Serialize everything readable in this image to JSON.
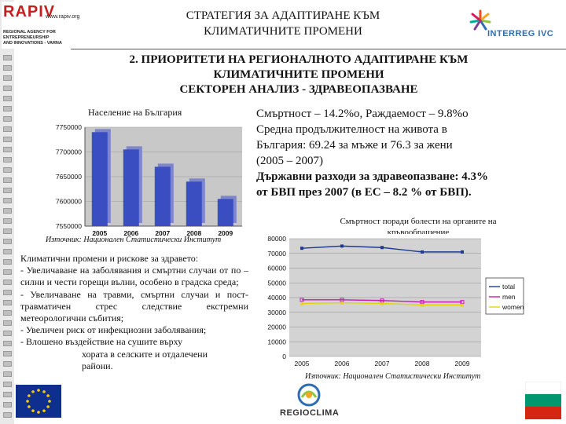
{
  "header": {
    "title_line1": "СТРАТЕГИЯ ЗА АДАПТИРАНЕ КЪМ",
    "title_line2": "КЛИМАТИЧНИТЕ ПРОМЕНИ",
    "rapiv_logo": {
      "name": "RAPIV",
      "web": "www.rapiv.org",
      "sub1": "REGIONAL AGENCY FOR ENTREPRENEURSHIP",
      "sub2": "AND INNOVATIONS - VARNA"
    },
    "interreg_logo": {
      "name": "INTERREG IVC"
    }
  },
  "section": {
    "title_line1": "2. ПРИОРИТЕТИ НА РЕГИОНАЛНОТО АДАПТИРАНЕ КЪМ",
    "title_line2": "КЛИМАТИЧНИТЕ ПРОМЕНИ",
    "title_line3": "СЕКТОРЕН АНАЛИЗ - ЗДРАВЕОПАЗВАНЕ"
  },
  "stats": {
    "line1": "Смъртност – 14.2%о, Раждаемост – 9.8%о",
    "line2": "Средна продължителност на живота в",
    "line3": "България: 69.24 за мъже и  76.3 за жени",
    "line4": "(2005 – 2007)",
    "line5": "Държавни разходи за здравеопазване: 4.3%",
    "line6": "от БВП през 2007 (в ЕС  – 8.2 % от БВП)."
  },
  "population_chart_title": "Население на България",
  "population_source": "Източник: Национален Статистически Институт",
  "mortality_chart_title_line1": "Смъртност поради болести на органите на",
  "mortality_chart_title_line2": "кръвообращение",
  "mortality_source": "Източник: Национален Статистически Институт",
  "climate": {
    "p1": "Климатични промени и рискове за здравето:",
    "p2": "- Увеличаване на заболявания и смъртни случаи от по – силни и чести горещи вълни, особено в градска среда;",
    "p3": "- Увеличаване на травми, смъртни случаи и пост-травматичен стрес следствие екстремни метеорологични събития;",
    "p4": "- Увеличен риск от инфекциозни заболявания;",
    "p5a": "- Влошено въздействие на сушите върху",
    "p5b": "хората в селските и отдалечени",
    "p5c": "райони."
  },
  "footer": {
    "regioclima": "REGIOCLIMA"
  },
  "colors": {
    "bar_fill": "#3a4ec2",
    "total": "#1f3a8f",
    "men": "#c21fb0",
    "women": "#e6d40a"
  },
  "chart_data": [
    {
      "type": "bar",
      "categories": [
        "2005",
        "2006",
        "2007",
        "2008",
        "2009"
      ],
      "values": [
        7740000,
        7705000,
        7670000,
        7640000,
        7605000
      ],
      "title": "Население на България",
      "ylim": [
        7550000,
        7750000
      ],
      "yticks": [
        "7550000",
        "7600000",
        "7650000",
        "7700000",
        "7750000"
      ]
    },
    {
      "type": "line",
      "categories": [
        "2005",
        "2006",
        "2007",
        "2008",
        "2009"
      ],
      "ylim": [
        0,
        80000
      ],
      "yticks": [
        "0",
        "10000",
        "20000",
        "30000",
        "40000",
        "50000",
        "60000",
        "70000",
        "80000"
      ],
      "legend": "right",
      "series": [
        {
          "name": "total",
          "values": [
            73500,
            75000,
            74000,
            71000,
            71000
          ]
        },
        {
          "name": "men",
          "values": [
            38500,
            38500,
            38000,
            37000,
            37000
          ]
        },
        {
          "name": "women",
          "values": [
            36000,
            36500,
            36000,
            35000,
            35000
          ]
        }
      ]
    }
  ]
}
